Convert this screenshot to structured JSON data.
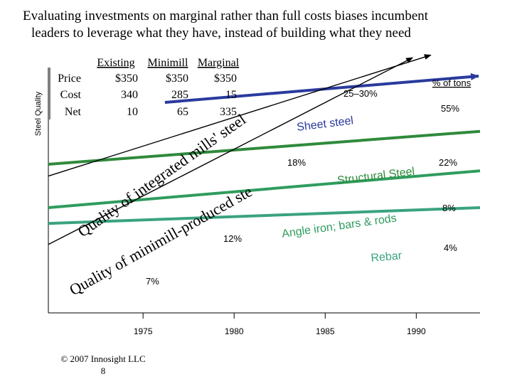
{
  "slide": {
    "title_line1": "Evaluating investments on marginal rather than full costs biases incumbent",
    "title_line2": "leaders to leverage what they have, instead of building what they need",
    "footer_copyright": "© 2007 Innosight LLC",
    "footer_page": "8"
  },
  "cost_table": {
    "columns": [
      "Existing",
      "Minimill",
      "Marginal"
    ],
    "rows": [
      {
        "label": "Price",
        "values": [
          "$350",
          "$350",
          "$350"
        ]
      },
      {
        "label": "Cost",
        "values": [
          "340",
          "285",
          "15"
        ]
      },
      {
        "label": "Net",
        "values": [
          "10",
          "65",
          "335"
        ]
      }
    ]
  },
  "chart_data": {
    "type": "line",
    "ylabel": "Steel Quality",
    "xlabel": "",
    "x_ticks": [
      "1975",
      "1980",
      "1985",
      "1990"
    ],
    "x_tick_values": [
      1975,
      1980,
      1985,
      1990
    ],
    "xlim": [
      1969.8,
      1993.5
    ],
    "ylim": [
      0,
      100
    ],
    "share_header": "% of tons",
    "colors": {
      "blue": "#2a3a9e",
      "dark_green": "#2f8a3c",
      "light_green": "#2f9c5e",
      "teal": "#3aa37f",
      "trajectory": "#000000"
    },
    "segments": [
      {
        "name": "Sheet steel",
        "share": "55%",
        "color": "blue",
        "values": [
          [
            1976.2,
            80
          ],
          [
            1993.5,
            90
          ]
        ],
        "arrow": true
      },
      {
        "name": "Structural Steel",
        "share": "22%",
        "color": "dark_green",
        "values": [
          [
            1969.8,
            56.5
          ],
          [
            1993.5,
            69
          ]
        ],
        "arrow": false
      },
      {
        "name": "Angle iron; bars & rods",
        "share": "8%",
        "color": "light_green",
        "values": [
          [
            1969.8,
            40
          ],
          [
            1993.5,
            54
          ]
        ],
        "arrow": false
      },
      {
        "name": "Rebar",
        "share": "4%",
        "color": "teal",
        "values": [
          [
            1969.8,
            34
          ],
          [
            1993.5,
            40
          ]
        ],
        "arrow": false
      }
    ],
    "trajectories": [
      {
        "name": "Quality of integrated mills' steel",
        "values": [
          [
            1969.8,
            52
          ],
          [
            1990.8,
            98
          ]
        ]
      },
      {
        "name": "Quality of minimill-produced steel",
        "values": [
          [
            1969.8,
            26
          ],
          [
            1989.8,
            97
          ]
        ]
      }
    ],
    "annotations": [
      {
        "text": "25–30%"
      },
      {
        "text": "18%"
      },
      {
        "text": "12%"
      },
      {
        "text": "7%"
      }
    ]
  }
}
